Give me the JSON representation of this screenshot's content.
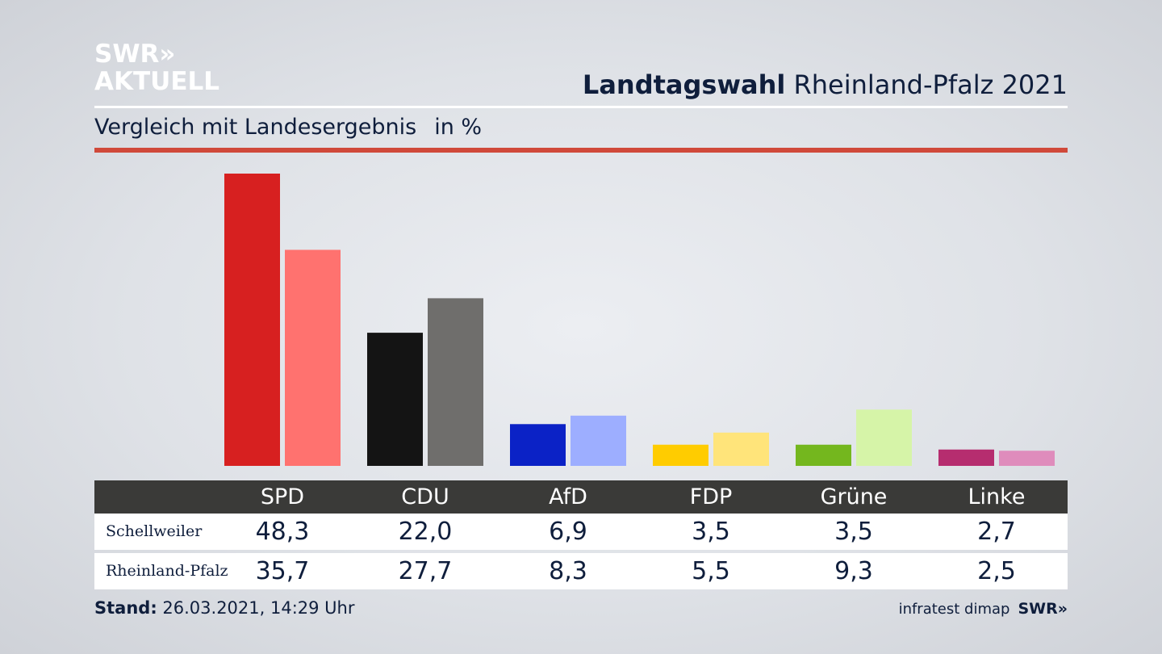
{
  "logo": {
    "line1": "SWR»",
    "line2": "AKTUELL"
  },
  "header": {
    "title_bold": "Landtagswahl",
    "title_rest": " Rheinland-Pfalz 2021"
  },
  "subtitle": {
    "text": "Vergleich mit Landesergebnis",
    "unit": "in %"
  },
  "table": {
    "parties": [
      "SPD",
      "CDU",
      "AfD",
      "FDP",
      "Grüne",
      "Linke"
    ],
    "rows": [
      {
        "label": "Schellweiler",
        "values": [
          "48,3",
          "22,0",
          "6,9",
          "3,5",
          "3,5",
          "2,7"
        ]
      },
      {
        "label": "Rheinland-Pfalz",
        "values": [
          "35,7",
          "27,7",
          "8,3",
          "5,5",
          "9,3",
          "2,5"
        ]
      }
    ]
  },
  "footer": {
    "stand_label": "Stand:",
    "stand_value": " 26.03.2021, 14:29 Uhr",
    "source": "infratest dimap",
    "brand": "SWR»"
  },
  "chart_data": {
    "type": "bar",
    "categories": [
      "SPD",
      "CDU",
      "AfD",
      "FDP",
      "Grüne",
      "Linke"
    ],
    "series": [
      {
        "name": "Schellweiler",
        "values": [
          48.3,
          22.0,
          6.9,
          3.5,
          3.5,
          2.7
        ],
        "colors": [
          "#d72020",
          "#141414",
          "#0b22c6",
          "#ffcc00",
          "#74b71e",
          "#b62d6f"
        ]
      },
      {
        "name": "Rheinland-Pfalz",
        "values": [
          35.7,
          27.7,
          8.3,
          5.5,
          9.3,
          2.5
        ],
        "colors": [
          "#ff726f",
          "#6f6e6c",
          "#9daeff",
          "#ffe47a",
          "#d6f4a8",
          "#df8cbc"
        ]
      }
    ],
    "ylim": [
      0,
      50
    ],
    "grid": false,
    "legend": "table below chart"
  }
}
